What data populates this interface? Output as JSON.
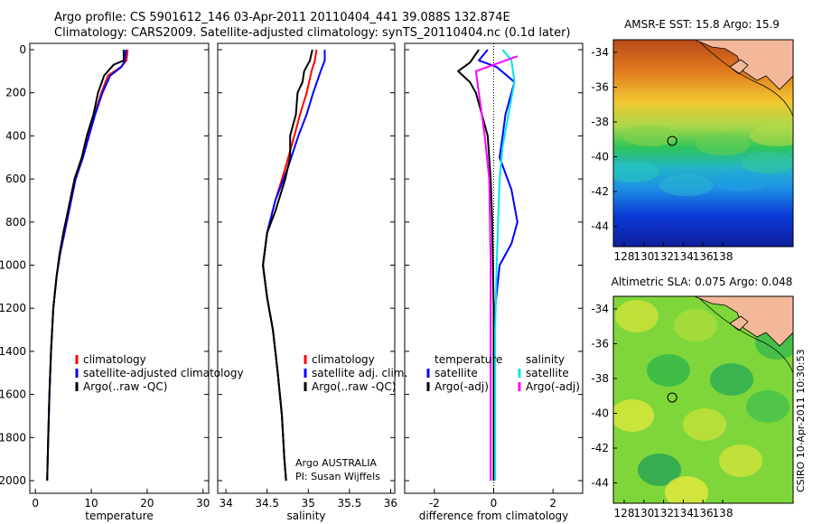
{
  "header": {
    "line1": "Argo profile: CS 5901612_146 03-Apr-2011 20110404_441 39.088S 132.874E",
    "line2": "Climatology: CARS2009. Satellite-adjusted climatology: synTS_20110404.nc (0.1d later)"
  },
  "credit": "CSIRO 10-Apr-2011 10:30:53",
  "colors": {
    "climatology": "#ff0000",
    "satellite": "#0000ff",
    "argo": "#000000",
    "satellite_salinity_diff": "#00e5ee",
    "argo_salinity_diff": "#ff00ff",
    "land": "#f3b89a"
  },
  "panels": {
    "temperature": {
      "xlabel": "temperature",
      "legend": [
        "climatology",
        "satellite-adjusted climatology",
        "Argo(..raw -QC)"
      ]
    },
    "salinity": {
      "xlabel": "salinity",
      "legend": [
        "climatology",
        "satellite adj. clim.",
        "Argo(..raw -QC)"
      ],
      "annotation": [
        "Argo AUSTRALIA",
        "PI: Susan Wijffels"
      ]
    },
    "difference": {
      "xlabel": "difference from climatology",
      "legend_left_title": "temperature",
      "legend_right_title": "salinity",
      "legend_left": [
        "satellite",
        "Argo(-adj)"
      ],
      "legend_right": [
        "satellite",
        "Argo(-adj)"
      ]
    }
  },
  "maps": [
    {
      "title": "AMSR-E SST: 15.8 Argo: 15.9",
      "x_ticks": [
        "128",
        "130",
        "132",
        "134",
        "136",
        "138"
      ],
      "y_ticks": [
        "-34",
        "-36",
        "-38",
        "-40",
        "-42",
        "-44"
      ]
    },
    {
      "title": "Altimetric SLA: 0.075 Argo: 0.048",
      "x_ticks": [
        "128",
        "130",
        "132",
        "134",
        "136",
        "138"
      ],
      "y_ticks": [
        "-34",
        "-36",
        "-38",
        "-40",
        "-42",
        "-44"
      ]
    }
  ],
  "chart_data": [
    {
      "type": "line",
      "xlabel": "temperature",
      "ylabel": "",
      "xlim": [
        -1,
        31
      ],
      "ylim": [
        2060,
        0
      ],
      "x_ticks": [
        0,
        10,
        20,
        30
      ],
      "y_ticks": [
        0,
        200,
        400,
        600,
        800,
        1000,
        1200,
        1400,
        1600,
        1800,
        2000
      ],
      "series": [
        {
          "name": "climatology",
          "color": "#ff0000",
          "x": [
            16.5,
            16.3,
            15.3,
            13.0,
            11.8,
            10.6,
            9.5,
            8.5,
            7.2,
            6.0,
            5.2,
            4.4,
            3.8,
            3.2,
            2.8,
            2.5,
            2.3,
            2.1
          ],
          "y": [
            0,
            50,
            80,
            120,
            200,
            300,
            400,
            500,
            600,
            750,
            850,
            950,
            1050,
            1200,
            1400,
            1600,
            1800,
            2000
          ]
        },
        {
          "name": "satellite-adjusted climatology",
          "color": "#0000ff",
          "x": [
            16.2,
            16.0,
            15.4,
            13.4,
            12.0,
            10.7,
            9.6,
            8.5,
            7.2,
            6.0,
            5.2,
            4.4,
            3.8,
            3.2,
            2.8,
            2.5,
            2.3,
            2.1
          ],
          "y": [
            0,
            50,
            80,
            120,
            200,
            300,
            400,
            500,
            600,
            750,
            850,
            950,
            1050,
            1200,
            1400,
            1600,
            1800,
            2000
          ]
        },
        {
          "name": "Argo(..raw -QC)",
          "color": "#000000",
          "x": [
            15.8,
            15.8,
            14.0,
            12.3,
            11.2,
            10.4,
            9.2,
            8.3,
            7.0,
            5.8,
            5.0,
            4.3,
            3.8,
            3.2,
            2.8,
            2.5,
            2.3,
            2.1
          ],
          "y": [
            0,
            50,
            70,
            120,
            200,
            300,
            400,
            500,
            600,
            750,
            850,
            950,
            1050,
            1200,
            1400,
            1600,
            1800,
            2000
          ]
        }
      ]
    },
    {
      "type": "line",
      "xlabel": "salinity",
      "ylabel": "",
      "xlim": [
        33.9,
        36.05
      ],
      "ylim": [
        2060,
        0
      ],
      "x_ticks": [
        34,
        34.5,
        35,
        35.5,
        36
      ],
      "series": [
        {
          "name": "climatology",
          "color": "#ff0000",
          "x": [
            35.1,
            35.08,
            35.04,
            34.98,
            34.9,
            34.83,
            34.72,
            34.6,
            34.5,
            34.45,
            34.5,
            34.57,
            34.63,
            34.68,
            34.71,
            34.73
          ],
          "y": [
            0,
            50,
            100,
            200,
            300,
            400,
            550,
            700,
            850,
            1000,
            1150,
            1300,
            1500,
            1700,
            1900,
            2000
          ]
        },
        {
          "name": "satellite adj. clim.",
          "color": "#0000ff",
          "x": [
            35.2,
            35.2,
            35.15,
            35.06,
            34.98,
            34.88,
            34.75,
            34.6,
            34.5,
            34.45,
            34.5,
            34.57,
            34.63,
            34.68,
            34.71,
            34.73
          ],
          "y": [
            0,
            50,
            100,
            200,
            300,
            400,
            550,
            700,
            850,
            1000,
            1150,
            1300,
            1500,
            1700,
            1900,
            2000
          ]
        },
        {
          "name": "Argo(..raw -QC)",
          "color": "#000000",
          "x": [
            35.05,
            35.02,
            34.95,
            34.93,
            34.87,
            34.85,
            34.78,
            34.78,
            34.72,
            34.6,
            34.5,
            34.45,
            34.5,
            34.57,
            34.63,
            34.68,
            34.71,
            34.73
          ],
          "y": [
            0,
            50,
            100,
            150,
            200,
            300,
            400,
            500,
            600,
            750,
            850,
            1000,
            1150,
            1300,
            1500,
            1700,
            1900,
            2000
          ]
        }
      ]
    },
    {
      "type": "line",
      "xlabel": "difference from climatology",
      "ylabel": "",
      "xlim": [
        -3.0,
        3.0
      ],
      "ylim": [
        2060,
        0
      ],
      "x_ticks": [
        -2,
        0,
        2
      ],
      "series": [
        {
          "name": "satellite",
          "quantity": "temperature",
          "color": "#0000ff",
          "x": [
            -0.2,
            -0.5,
            0.1,
            0.7,
            0.6,
            0.4,
            0.3,
            0.2,
            0.6,
            0.8,
            0.6,
            0.2,
            0.05,
            0.0,
            0.0,
            0.0
          ],
          "y": [
            0,
            50,
            80,
            150,
            200,
            300,
            400,
            500,
            650,
            800,
            900,
            1000,
            1200,
            1500,
            1800,
            2000
          ]
        },
        {
          "name": "Argo(-adj)",
          "quantity": "temperature",
          "color": "#000000",
          "x": [
            -0.5,
            -0.8,
            -1.2,
            -0.8,
            -0.6,
            -0.4,
            -0.2,
            -0.1,
            -0.05,
            0.0,
            0.0
          ],
          "y": [
            0,
            60,
            100,
            150,
            200,
            300,
            400,
            600,
            800,
            1200,
            2000
          ]
        },
        {
          "name": "satellite",
          "quantity": "salinity",
          "color": "#00e5ee",
          "x": [
            0.3,
            0.6,
            0.7,
            0.5,
            0.3,
            0.2,
            0.15,
            0.1,
            0.05,
            0.05,
            0.05
          ],
          "y": [
            0,
            50,
            150,
            300,
            450,
            600,
            800,
            1000,
            1300,
            1600,
            2000
          ]
        },
        {
          "name": "Argo(-adj)",
          "quantity": "salinity",
          "color": "#ff00ff",
          "x": [
            0.8,
            0.4,
            -0.6,
            -0.5,
            -0.4,
            -0.3,
            -0.15,
            -0.1,
            -0.1,
            -0.1
          ],
          "y": [
            30,
            50,
            100,
            200,
            300,
            400,
            600,
            1000,
            1500,
            2000
          ]
        }
      ]
    }
  ]
}
